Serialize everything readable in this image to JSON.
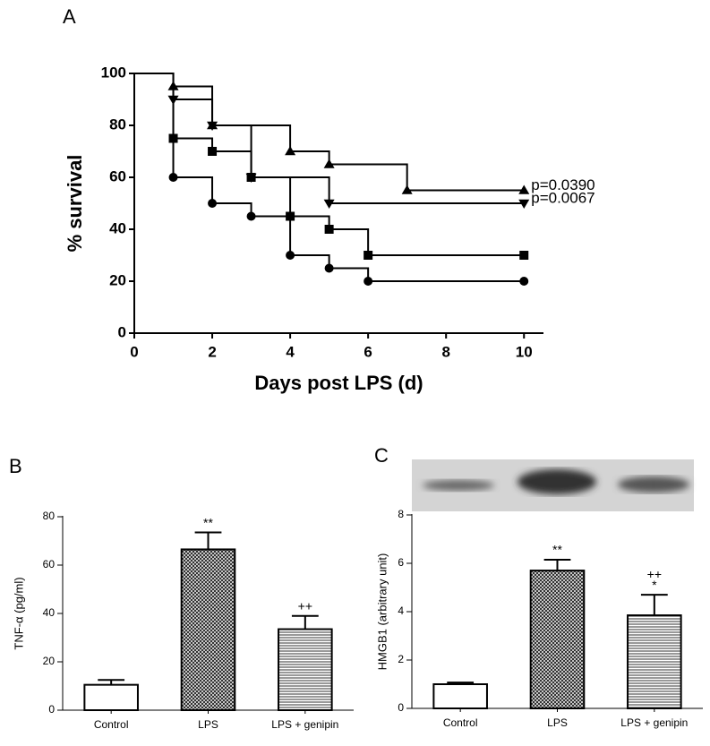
{
  "chart_data": [
    {
      "type": "step",
      "panel": "A",
      "xlabel": "Days post LPS (d)",
      "ylabel": "% survival",
      "xlim": [
        0,
        10.5
      ],
      "xticks": [
        0,
        2,
        4,
        6,
        8,
        10
      ],
      "ylim": [
        0,
        100
      ],
      "yticks": [
        0,
        20,
        40,
        60,
        80,
        100
      ],
      "series": [
        {
          "color": "#000000",
          "marker": "triangle-up",
          "x": [
            0,
            1,
            2,
            4,
            5,
            7,
            10
          ],
          "values": [
            100,
            95,
            80,
            70,
            65,
            55,
            55
          ]
        },
        {
          "color": "#000000",
          "marker": "triangle-down",
          "x": [
            0,
            1,
            2,
            3,
            5,
            10
          ],
          "values": [
            100,
            90,
            80,
            60,
            50,
            50
          ]
        },
        {
          "color": "#000000",
          "marker": "square",
          "x": [
            0,
            1,
            2,
            3,
            4,
            5,
            6,
            10
          ],
          "values": [
            100,
            75,
            70,
            60,
            45,
            40,
            30,
            30
          ]
        },
        {
          "color": "#000000",
          "marker": "circle",
          "x": [
            0,
            1,
            2,
            3,
            4,
            5,
            6,
            10
          ],
          "values": [
            100,
            60,
            50,
            45,
            30,
            25,
            20,
            20
          ]
        }
      ],
      "annotations": [
        {
          "text": "p=0.0390",
          "x": 10,
          "y": 55
        },
        {
          "text": "p=0.0067",
          "x": 10,
          "y": 50
        }
      ]
    },
    {
      "type": "bar",
      "panel": "B",
      "ylabel": "TNF-α (pg/ml)",
      "categories": [
        "Control",
        "LPS",
        "LPS + genipin"
      ],
      "values": [
        10.5,
        66.5,
        33.5
      ],
      "errors": [
        2,
        7,
        5.5
      ],
      "fills": [
        "white",
        "crosshatch",
        "hlines"
      ],
      "sig_labels": [
        [],
        [
          "**"
        ],
        [
          "++"
        ]
      ],
      "ylim": [
        0,
        80
      ],
      "yticks": [
        0,
        20,
        40,
        60,
        80
      ]
    },
    {
      "type": "bar",
      "panel": "C",
      "ylabel": "HMGB1 (arbitrary unit)",
      "categories": [
        "Control",
        "LPS",
        "LPS + genipin"
      ],
      "values": [
        1,
        5.7,
        3.85
      ],
      "errors": [
        0.07,
        0.45,
        0.85
      ],
      "fills": [
        "white",
        "crosshatch",
        "hlines"
      ],
      "sig_labels": [
        [],
        [
          "**"
        ],
        [
          "++",
          "*"
        ]
      ],
      "ylim": [
        0,
        8
      ],
      "yticks": [
        0,
        2,
        4,
        6,
        8
      ]
    }
  ]
}
